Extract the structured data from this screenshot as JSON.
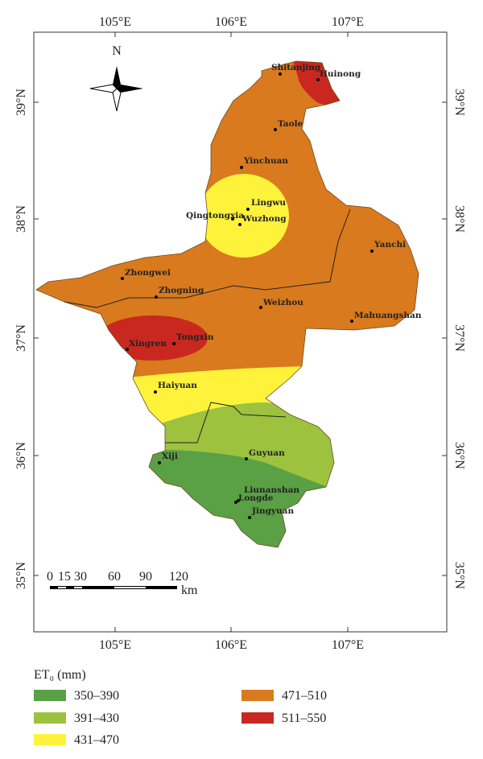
{
  "map": {
    "longitude_labels": [
      "105°E",
      "106°E",
      "107°E"
    ],
    "latitude_labels": [
      "39°N",
      "38°N",
      "37°N",
      "36°N",
      "35°N"
    ],
    "north_label": "N",
    "cities": [
      "Shitanjing",
      "Huinong",
      "Taole",
      "Yinchuan",
      "Lingwu",
      "Qingtongxia",
      "Wuzhong",
      "Yanchi",
      "Zhongwei",
      "Zhogning",
      "Weizhou",
      "Mahuangshan",
      "Xingren",
      "Tongxin",
      "Haiyuan",
      "Guyuan",
      "Xiji",
      "Liunanshan",
      "Longde",
      "Jingyuan"
    ],
    "scale_bar": {
      "labels": [
        "0",
        "15",
        "30",
        "60",
        "90",
        "120"
      ],
      "unit": "km"
    }
  },
  "legend": {
    "title": "ET₀ (mm)",
    "items": [
      {
        "label": "350–390",
        "color": "#5aa044"
      },
      {
        "label": "391–430",
        "color": "#9cc23e"
      },
      {
        "label": "431–470",
        "color": "#fff23b"
      },
      {
        "label": "471–510",
        "color": "#d97a1e"
      },
      {
        "label": "511–550",
        "color": "#c8281f"
      }
    ]
  }
}
